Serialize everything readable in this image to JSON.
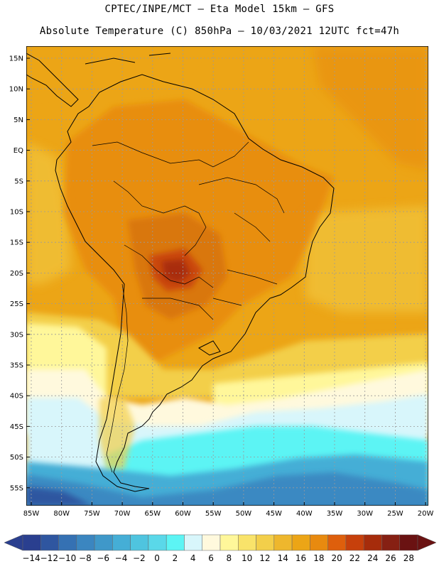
{
  "header": {
    "line1": "CPTEC/INPE/MCT –  Eta Model 15km – GFS",
    "line2": "Absolute Temperature (C) 850hPa – 10/03/2021 12UTC fct=47h"
  },
  "axes": {
    "lat_labels": [
      "15N",
      "10N",
      "5N",
      "EQ",
      "5S",
      "10S",
      "15S",
      "20S",
      "25S",
      "30S",
      "35S",
      "40S",
      "45S",
      "50S",
      "55S"
    ],
    "lon_labels": [
      "85W",
      "80W",
      "75W",
      "70W",
      "65W",
      "60W",
      "55W",
      "50W",
      "45W",
      "40W",
      "35W",
      "30W",
      "25W",
      "20W"
    ]
  },
  "colorbar": {
    "labels": [
      "-14",
      "-12",
      "-10",
      "-8",
      "-6",
      "-4",
      "-2",
      "0",
      "2",
      "4",
      "6",
      "8",
      "10",
      "12",
      "14",
      "16",
      "18",
      "20",
      "22",
      "24",
      "26",
      "28"
    ],
    "colors": [
      "#2a3f8f",
      "#2f56a0",
      "#3571b3",
      "#3b86c0",
      "#3f98c9",
      "#45aed6",
      "#4fc4df",
      "#5ad8e9",
      "#5cf4f4",
      "#d8f6fb",
      "#fff9dd",
      "#fff79a",
      "#f9e36a",
      "#f3cf4a",
      "#eeb72d",
      "#eca516",
      "#e88a0f",
      "#de5f0c",
      "#c7400b",
      "#a62c0b",
      "#862013",
      "#6a1212"
    ],
    "units": "C"
  },
  "map_info": {
    "variable": "temperature 850hPa",
    "colors": {
      "hot": "#d8740f",
      "warm": "#e88a0f",
      "mid": "#eca516",
      "mild": "#f3cf4a",
      "cool": "#fff79a",
      "cold_pale": "#d8f6fb",
      "cold": "#5cf4f4",
      "colder": "#45aed6",
      "coldest": "#2f56a0",
      "peak": "#c7400b",
      "peak2": "#a62c0b"
    }
  }
}
